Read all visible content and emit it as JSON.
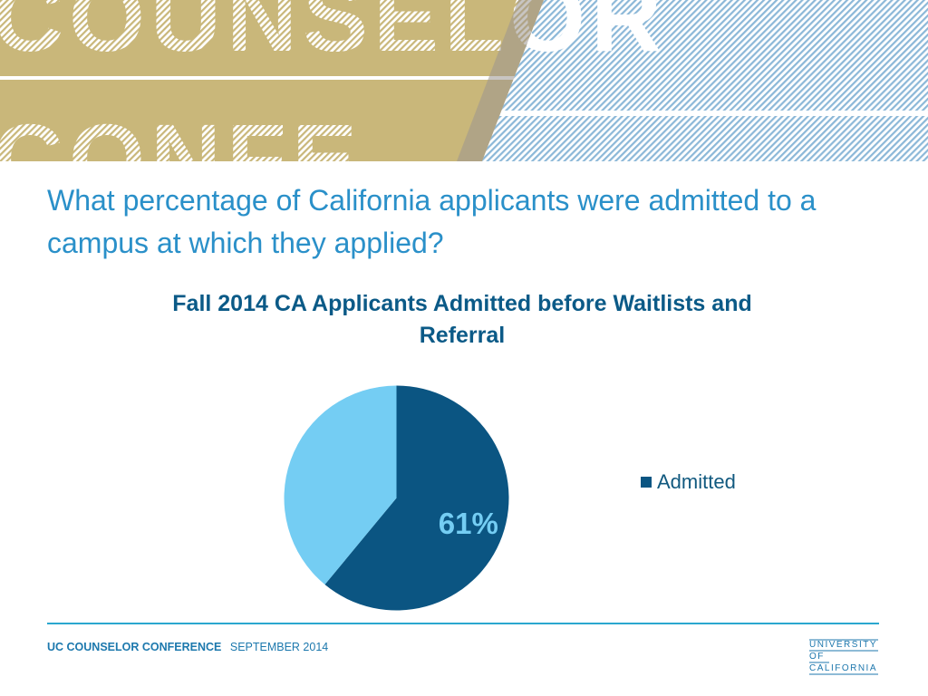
{
  "banner": {
    "words_top": "COUNSELOR",
    "words_bottom": "CONFE",
    "colors": {
      "gold": "#c9b77a",
      "blue": "#8cb8d8",
      "white": "#ffffff"
    }
  },
  "question": "What percentage of California applicants were admitted to a campus at which they applied?",
  "chart_data": {
    "type": "pie",
    "title": "Fall 2014 CA Applicants Admitted before Waitlists and Referral",
    "slices": [
      {
        "name": "Admitted",
        "value": 61,
        "label": "61%",
        "color": "#0b5582",
        "in_legend": true
      },
      {
        "name": "",
        "value": 39,
        "label": "",
        "color": "#74cdf3",
        "in_legend": false
      }
    ],
    "legend": {
      "position": "right",
      "entries": [
        "Admitted"
      ]
    }
  },
  "footer": {
    "conference": "UC COUNSELOR CONFERENCE",
    "date": "SEPTEMBER 2014",
    "logo_lines": [
      "UNIVERSITY",
      "OF",
      "CALIFORNIA"
    ],
    "rule_color": "#2aa7cf"
  }
}
